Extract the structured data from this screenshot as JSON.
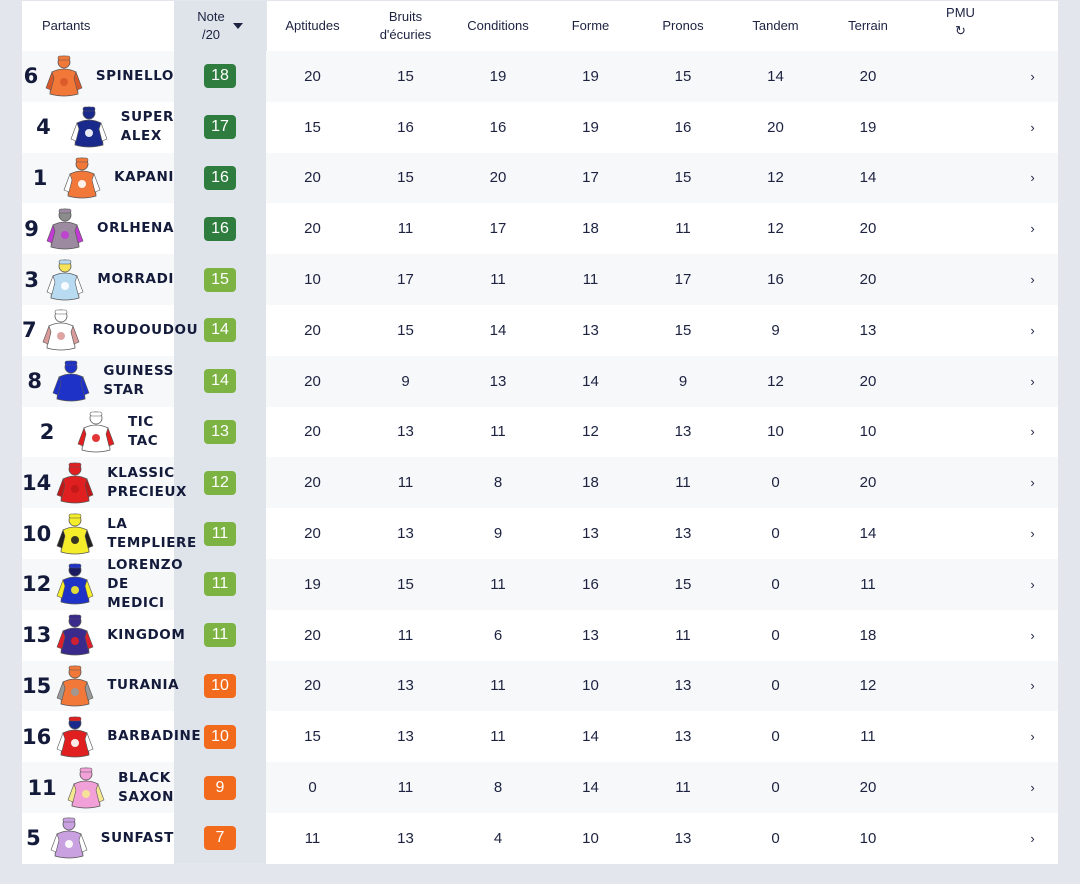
{
  "header": {
    "partants": "Partants",
    "note_line1": "Note",
    "note_line2": "/20",
    "aptitudes": "Aptitudes",
    "bruits_line1": "Bruits",
    "bruits_line2": "d'écuries",
    "conditions": "Conditions",
    "forme": "Forme",
    "pronos": "Pronos",
    "tandem": "Tandem",
    "terrain": "Terrain",
    "pmu": "PMU",
    "refresh_icon": "↻",
    "arrow_glyph": "›"
  },
  "colors": {
    "note_dark_green": "#2e7d3f",
    "note_light_green": "#7cb342",
    "note_orange": "#f26b1d"
  },
  "rows": [
    {
      "num": "6",
      "name": "SPINELLO",
      "note": "18",
      "note_color": "#2e7d3f",
      "silk": "orange-red",
      "aptitudes": "20",
      "bruits": "15",
      "conditions": "19",
      "forme": "19",
      "pronos": "15",
      "tandem": "14",
      "terrain": "20"
    },
    {
      "num": "4",
      "name": "SUPER\nALEX",
      "note": "17",
      "note_color": "#2e7d3f",
      "silk": "navy-blue-ring",
      "aptitudes": "15",
      "bruits": "16",
      "conditions": "16",
      "forme": "19",
      "pronos": "16",
      "tandem": "20",
      "terrain": "19"
    },
    {
      "num": "1",
      "name": "KAPANI",
      "note": "16",
      "note_color": "#2e7d3f",
      "silk": "orange-white",
      "aptitudes": "20",
      "bruits": "15",
      "conditions": "20",
      "forme": "17",
      "pronos": "15",
      "tandem": "12",
      "terrain": "14"
    },
    {
      "num": "9",
      "name": "ORLHENA",
      "note": "16",
      "note_color": "#2e7d3f",
      "silk": "grey-purple",
      "aptitudes": "20",
      "bruits": "11",
      "conditions": "17",
      "forme": "18",
      "pronos": "11",
      "tandem": "12",
      "terrain": "20"
    },
    {
      "num": "3",
      "name": "MORRADI",
      "note": "15",
      "note_color": "#7cb342",
      "silk": "lightblue-yellow",
      "aptitudes": "10",
      "bruits": "17",
      "conditions": "11",
      "forme": "11",
      "pronos": "17",
      "tandem": "16",
      "terrain": "20"
    },
    {
      "num": "7",
      "name": "ROUDOUDOU",
      "note": "14",
      "note_color": "#7cb342",
      "silk": "white-grey",
      "aptitudes": "20",
      "bruits": "15",
      "conditions": "14",
      "forme": "13",
      "pronos": "15",
      "tandem": "9",
      "terrain": "13"
    },
    {
      "num": "8",
      "name": "GUINESS\nSTAR",
      "note": "14",
      "note_color": "#7cb342",
      "silk": "royal-blue",
      "aptitudes": "20",
      "bruits": "9",
      "conditions": "13",
      "forme": "14",
      "pronos": "9",
      "tandem": "12",
      "terrain": "20"
    },
    {
      "num": "2",
      "name": "TIC\nTAC",
      "note": "13",
      "note_color": "#7cb342",
      "silk": "white-red",
      "aptitudes": "20",
      "bruits": "13",
      "conditions": "11",
      "forme": "12",
      "pronos": "13",
      "tandem": "10",
      "terrain": "10"
    },
    {
      "num": "14",
      "name": "KLASSIC\nPRECIEUX",
      "note": "12",
      "note_color": "#7cb342",
      "silk": "red",
      "aptitudes": "20",
      "bruits": "11",
      "conditions": "8",
      "forme": "18",
      "pronos": "11",
      "tandem": "0",
      "terrain": "20"
    },
    {
      "num": "10",
      "name": "LA\nTEMPLIERE",
      "note": "11",
      "note_color": "#7cb342",
      "silk": "yellow-black",
      "aptitudes": "20",
      "bruits": "13",
      "conditions": "9",
      "forme": "13",
      "pronos": "13",
      "tandem": "0",
      "terrain": "14"
    },
    {
      "num": "12",
      "name": "LORENZO\nDE\nMEDICI",
      "note": "11",
      "note_color": "#7cb342",
      "silk": "blue-yellow",
      "aptitudes": "19",
      "bruits": "15",
      "conditions": "11",
      "forme": "16",
      "pronos": "15",
      "tandem": "0",
      "terrain": "11"
    },
    {
      "num": "13",
      "name": "KINGDOM",
      "note": "11",
      "note_color": "#7cb342",
      "silk": "purple-red",
      "aptitudes": "20",
      "bruits": "11",
      "conditions": "6",
      "forme": "13",
      "pronos": "11",
      "tandem": "0",
      "terrain": "18"
    },
    {
      "num": "15",
      "name": "TURANIA",
      "note": "10",
      "note_color": "#f26b1d",
      "silk": "orange-grey",
      "aptitudes": "20",
      "bruits": "13",
      "conditions": "11",
      "forme": "10",
      "pronos": "13",
      "tandem": "0",
      "terrain": "12"
    },
    {
      "num": "16",
      "name": "BARBADINE",
      "note": "10",
      "note_color": "#f26b1d",
      "silk": "red-star",
      "aptitudes": "15",
      "bruits": "13",
      "conditions": "11",
      "forme": "14",
      "pronos": "13",
      "tandem": "0",
      "terrain": "11"
    },
    {
      "num": "11",
      "name": "BLACK\nSAXON",
      "note": "9",
      "note_color": "#f26b1d",
      "silk": "pink-yellow",
      "aptitudes": "0",
      "bruits": "11",
      "conditions": "8",
      "forme": "14",
      "pronos": "11",
      "tandem": "0",
      "terrain": "20"
    },
    {
      "num": "5",
      "name": "SUNFAST",
      "note": "7",
      "note_color": "#f26b1d",
      "silk": "lilac",
      "aptitudes": "11",
      "bruits": "13",
      "conditions": "4",
      "forme": "10",
      "pronos": "13",
      "tandem": "0",
      "terrain": "10"
    }
  ]
}
